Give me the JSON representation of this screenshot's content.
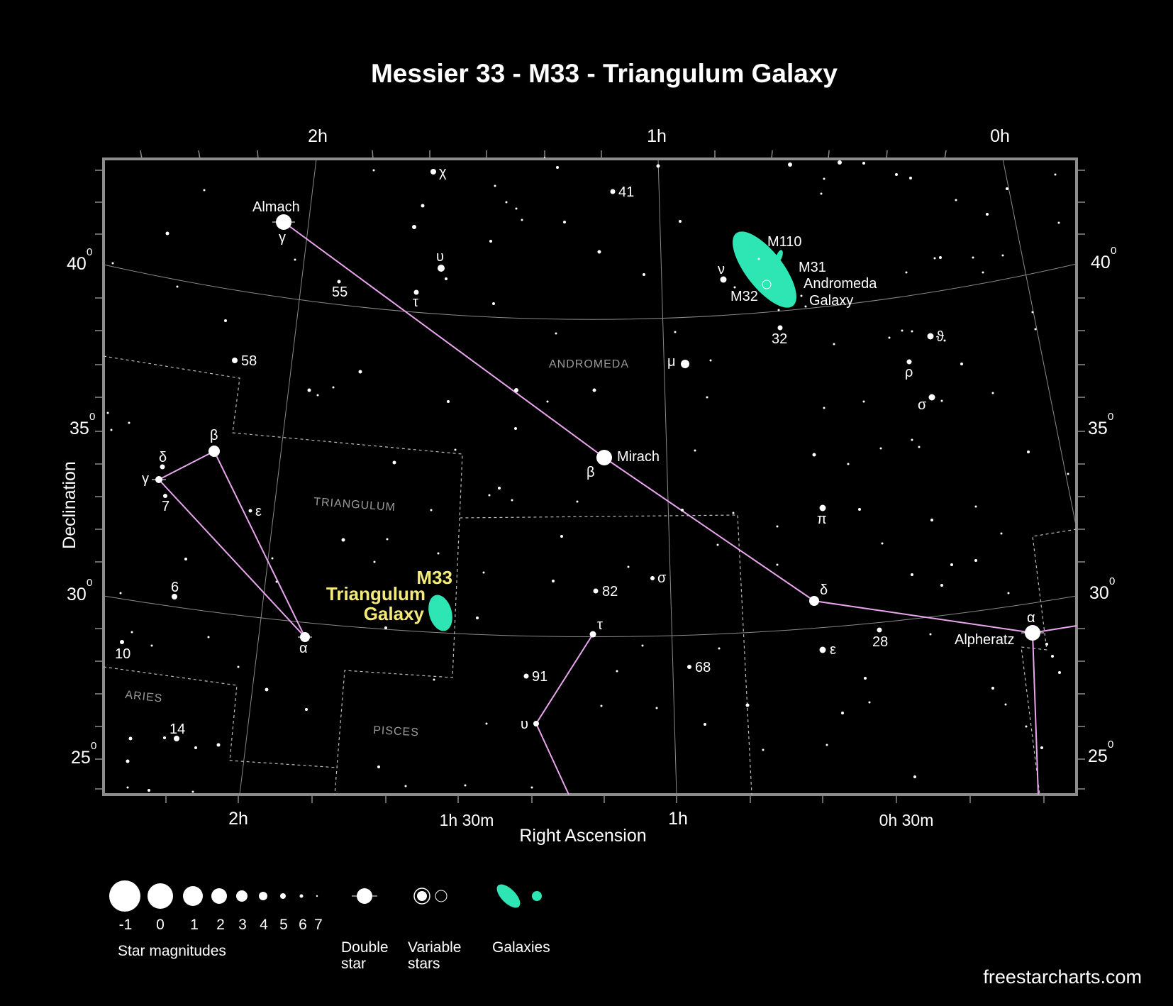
{
  "title": "Messier 33 - M33 - Triangulum Galaxy",
  "axes": {
    "x_label": "Right Ascension",
    "y_label": "Declination",
    "top_ticks": [
      "2h",
      "1h",
      "0h"
    ],
    "bottom_ticks": [
      "2h",
      "1h 30m",
      "1h",
      "0h 30m"
    ],
    "dec_ticks": [
      {
        "value": "40",
        "sup": "0"
      },
      {
        "value": "35",
        "sup": "0"
      },
      {
        "value": "30",
        "sup": "0"
      },
      {
        "value": "25",
        "sup": "0"
      }
    ]
  },
  "constellations": [
    "Andromeda",
    "Triangulum",
    "Aries",
    "Pisces"
  ],
  "named_stars": {
    "almach": "Almach",
    "mirach": "Mirach",
    "alpheratz": "Alpheratz"
  },
  "star_labels": {
    "chi": "χ",
    "n41": "41",
    "gamma_and": "γ",
    "upsilon_and": "υ",
    "n55": "55",
    "tau_and": "τ",
    "nu_and": "ν",
    "n58": "58",
    "mu_and": "μ",
    "beta_and": "β",
    "n32": "32",
    "theta_and": "ϑ",
    "rho_and": "ρ",
    "sigma_and": "σ",
    "pi_and": "π",
    "delta_tri": "δ",
    "beta_tri": "β",
    "gamma_tri": "γ",
    "n7": "7",
    "epsilon_tri": "ε",
    "alpha_tri": "α",
    "n6": "6",
    "n10": "10",
    "n14": "14",
    "n82": "82",
    "sigma_psc": "σ",
    "tau_psc": "τ",
    "n91": "91",
    "upsilon_psc": "υ",
    "n68": "68",
    "delta_and": "δ",
    "epsilon_and": "ε",
    "n28": "28",
    "alpha_and": "α"
  },
  "objects": {
    "m110": "M110",
    "m31": "M31",
    "m31_name_1": "Andromeda",
    "m31_name_2": "Galaxy",
    "m32": "M32",
    "m33": "M33",
    "m33_name_1": "Triangulum",
    "m33_name_2": "Galaxy"
  },
  "legend": {
    "magnitudes": [
      "-1",
      "0",
      "1",
      "2",
      "3",
      "4",
      "5",
      "6",
      "7"
    ],
    "magnitudes_title": "Star magnitudes",
    "double_star_1": "Double",
    "double_star_2": "star",
    "variable_1": "Variable",
    "variable_2": "stars",
    "galaxies": "Galaxies"
  },
  "credit": "freestarcharts.com",
  "colors": {
    "background": "#000000",
    "galaxy": "#2ee6b4",
    "highlight": "#f3ea7a",
    "asterism_line": "#e9a6ef",
    "frame": "#8c8c8c"
  }
}
